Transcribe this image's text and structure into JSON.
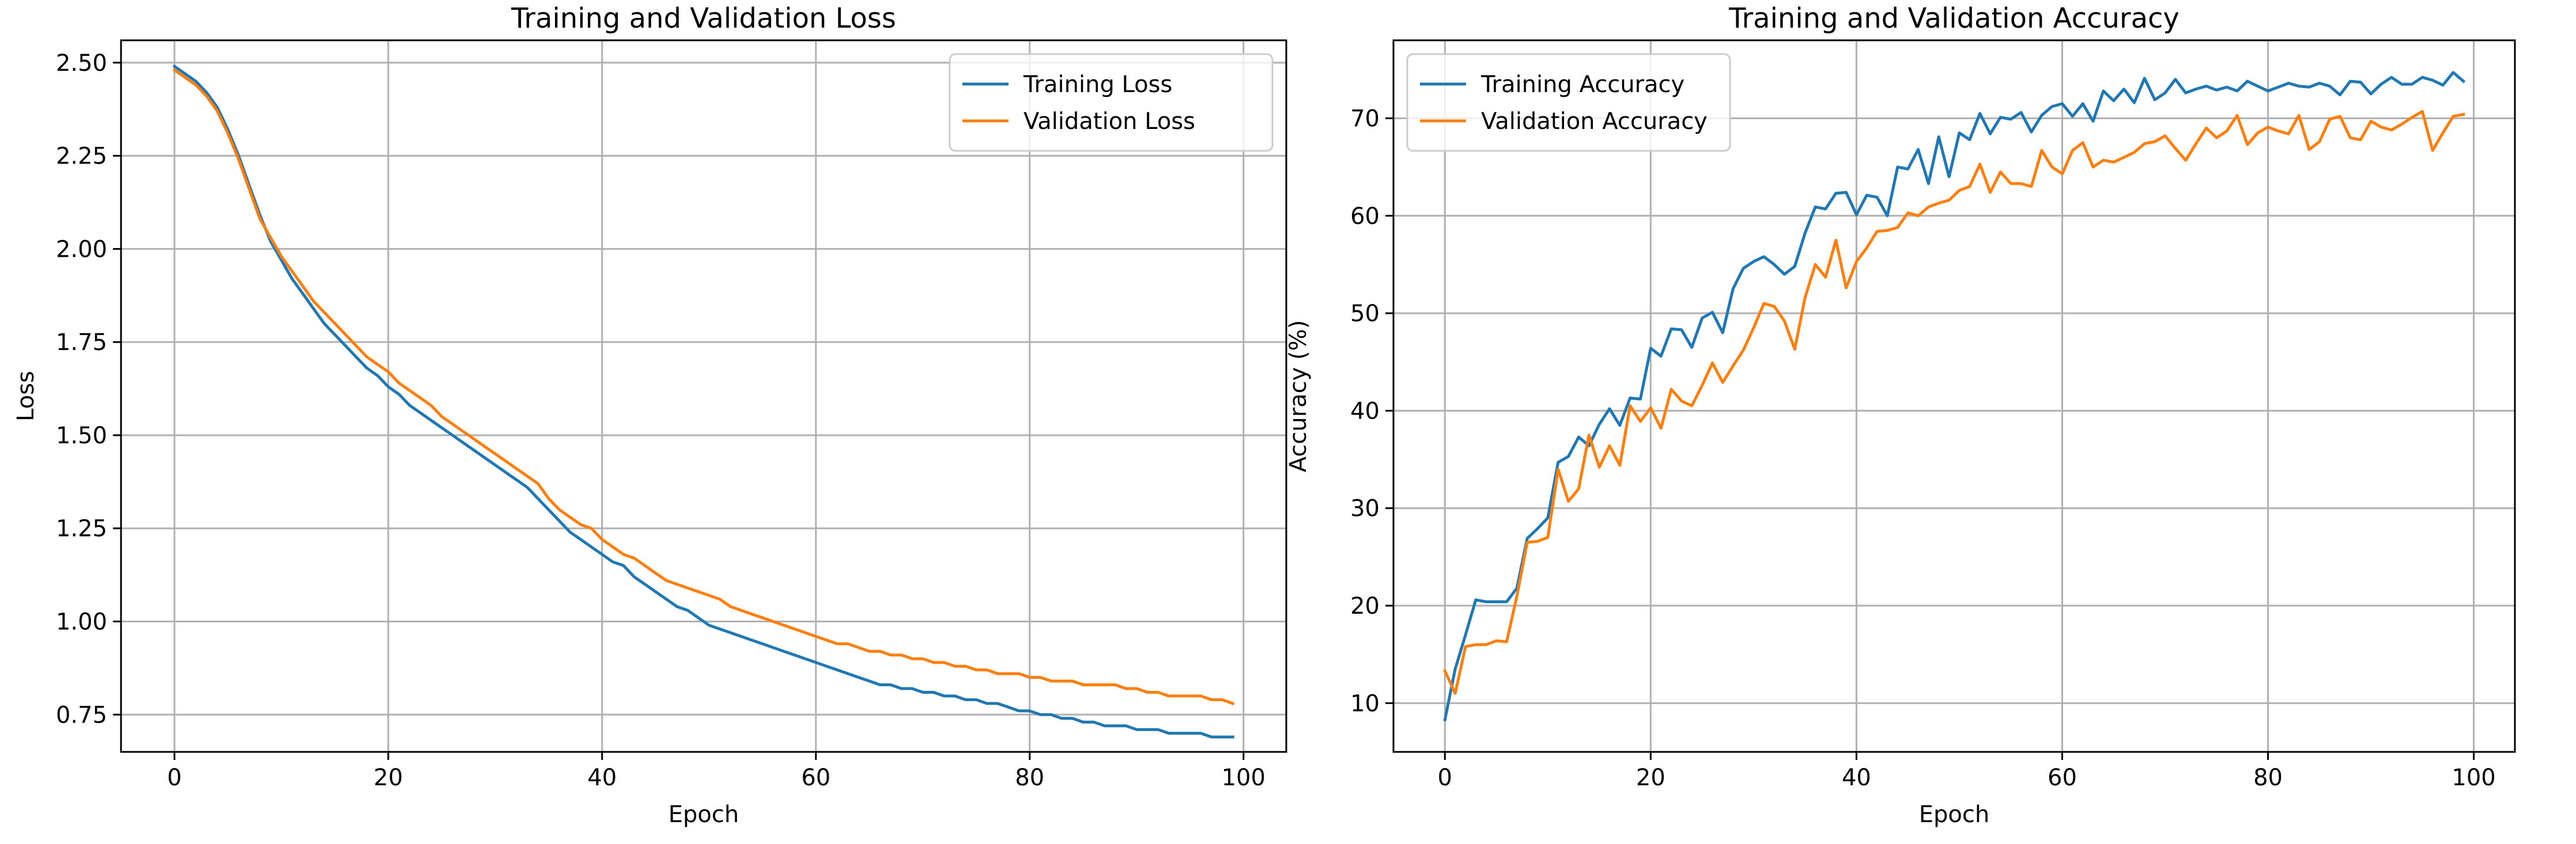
{
  "chart_data": [
    {
      "type": "line",
      "title": "Training and Validation Loss",
      "xlabel": "Epoch",
      "ylabel": "Loss",
      "xlim": [
        -5,
        104
      ],
      "ylim": [
        0.65,
        2.56
      ],
      "xticks": [
        0,
        20,
        40,
        60,
        80,
        100
      ],
      "xtick_labels": [
        "0",
        "20",
        "40",
        "60",
        "80",
        "100"
      ],
      "yticks": [
        0.75,
        1.0,
        1.25,
        1.5,
        1.75,
        2.0,
        2.25,
        2.5
      ],
      "ytick_labels": [
        "0.75",
        "1.00",
        "1.25",
        "1.50",
        "1.75",
        "2.00",
        "2.25",
        "2.50"
      ],
      "grid": true,
      "legend_position": "upper right",
      "series": [
        {
          "name": "Training Loss",
          "color": "#1f77b4",
          "x": [
            0,
            1,
            2,
            3,
            4,
            5,
            6,
            7,
            8,
            9,
            10,
            11,
            12,
            13,
            14,
            15,
            16,
            17,
            18,
            19,
            20,
            21,
            22,
            23,
            24,
            25,
            26,
            27,
            28,
            29,
            30,
            31,
            32,
            33,
            34,
            35,
            36,
            37,
            38,
            39,
            40,
            41,
            42,
            43,
            44,
            45,
            46,
            47,
            48,
            49,
            50,
            51,
            52,
            53,
            54,
            55,
            56,
            57,
            58,
            59,
            60,
            61,
            62,
            63,
            64,
            65,
            66,
            67,
            68,
            69,
            70,
            71,
            72,
            73,
            74,
            75,
            76,
            77,
            78,
            79,
            80,
            81,
            82,
            83,
            84,
            85,
            86,
            87,
            88,
            89,
            90,
            91,
            92,
            93,
            94,
            95,
            96,
            97,
            98,
            99
          ],
          "values": [
            2.49,
            2.47,
            2.45,
            2.42,
            2.38,
            2.32,
            2.25,
            2.17,
            2.09,
            2.02,
            1.97,
            1.92,
            1.88,
            1.84,
            1.8,
            1.77,
            1.74,
            1.71,
            1.68,
            1.66,
            1.63,
            1.61,
            1.58,
            1.56,
            1.54,
            1.52,
            1.5,
            1.48,
            1.46,
            1.44,
            1.42,
            1.4,
            1.38,
            1.36,
            1.33,
            1.3,
            1.27,
            1.24,
            1.22,
            1.2,
            1.18,
            1.16,
            1.15,
            1.12,
            1.1,
            1.08,
            1.06,
            1.04,
            1.03,
            1.01,
            0.99,
            0.98,
            0.97,
            0.96,
            0.95,
            0.94,
            0.93,
            0.92,
            0.91,
            0.9,
            0.89,
            0.88,
            0.87,
            0.86,
            0.85,
            0.84,
            0.83,
            0.83,
            0.82,
            0.82,
            0.81,
            0.81,
            0.8,
            0.8,
            0.79,
            0.79,
            0.78,
            0.78,
            0.77,
            0.76,
            0.76,
            0.75,
            0.75,
            0.74,
            0.74,
            0.73,
            0.73,
            0.72,
            0.72,
            0.72,
            0.71,
            0.71,
            0.71,
            0.7,
            0.7,
            0.7,
            0.7,
            0.69,
            0.69,
            0.69
          ]
        },
        {
          "name": "Validation Loss",
          "color": "#ff7f0e",
          "x": [
            0,
            1,
            2,
            3,
            4,
            5,
            6,
            7,
            8,
            9,
            10,
            11,
            12,
            13,
            14,
            15,
            16,
            17,
            18,
            19,
            20,
            21,
            22,
            23,
            24,
            25,
            26,
            27,
            28,
            29,
            30,
            31,
            32,
            33,
            34,
            35,
            36,
            37,
            38,
            39,
            40,
            41,
            42,
            43,
            44,
            45,
            46,
            47,
            48,
            49,
            50,
            51,
            52,
            53,
            54,
            55,
            56,
            57,
            58,
            59,
            60,
            61,
            62,
            63,
            64,
            65,
            66,
            67,
            68,
            69,
            70,
            71,
            72,
            73,
            74,
            75,
            76,
            77,
            78,
            79,
            80,
            81,
            82,
            83,
            84,
            85,
            86,
            87,
            88,
            89,
            90,
            91,
            92,
            93,
            94,
            95,
            96,
            97,
            98,
            99
          ],
          "values": [
            2.48,
            2.46,
            2.44,
            2.41,
            2.37,
            2.31,
            2.24,
            2.16,
            2.08,
            2.03,
            1.98,
            1.94,
            1.9,
            1.86,
            1.83,
            1.8,
            1.77,
            1.74,
            1.71,
            1.69,
            1.67,
            1.64,
            1.62,
            1.6,
            1.58,
            1.55,
            1.53,
            1.51,
            1.49,
            1.47,
            1.45,
            1.43,
            1.41,
            1.39,
            1.37,
            1.33,
            1.3,
            1.28,
            1.26,
            1.25,
            1.22,
            1.2,
            1.18,
            1.17,
            1.15,
            1.13,
            1.11,
            1.1,
            1.09,
            1.08,
            1.07,
            1.06,
            1.04,
            1.03,
            1.02,
            1.01,
            1.0,
            0.99,
            0.98,
            0.97,
            0.96,
            0.95,
            0.94,
            0.94,
            0.93,
            0.92,
            0.92,
            0.91,
            0.91,
            0.9,
            0.9,
            0.89,
            0.89,
            0.88,
            0.88,
            0.87,
            0.87,
            0.86,
            0.86,
            0.86,
            0.85,
            0.85,
            0.84,
            0.84,
            0.84,
            0.83,
            0.83,
            0.83,
            0.83,
            0.82,
            0.82,
            0.81,
            0.81,
            0.8,
            0.8,
            0.8,
            0.8,
            0.79,
            0.79,
            0.78
          ]
        }
      ]
    },
    {
      "type": "line",
      "title": "Training and Validation Accuracy",
      "xlabel": "Epoch",
      "ylabel": "Accuracy (%)",
      "xlim": [
        -5,
        104
      ],
      "ylim": [
        5,
        78
      ],
      "xticks": [
        0,
        20,
        40,
        60,
        80,
        100
      ],
      "xtick_labels": [
        "0",
        "20",
        "40",
        "60",
        "80",
        "100"
      ],
      "yticks": [
        10,
        20,
        30,
        40,
        50,
        60,
        70
      ],
      "ytick_labels": [
        "10",
        "20",
        "30",
        "40",
        "50",
        "60",
        "70"
      ],
      "grid": true,
      "legend_position": "upper left",
      "series": [
        {
          "name": "Training Accuracy",
          "color": "#1f77b4",
          "x": [
            0,
            1,
            2,
            3,
            4,
            5,
            6,
            7,
            8,
            9,
            10,
            11,
            12,
            13,
            14,
            15,
            16,
            17,
            18,
            19,
            20,
            21,
            22,
            23,
            24,
            25,
            26,
            27,
            28,
            29,
            30,
            31,
            32,
            33,
            34,
            35,
            36,
            37,
            38,
            39,
            40,
            41,
            42,
            43,
            44,
            45,
            46,
            47,
            48,
            49,
            50,
            51,
            52,
            53,
            54,
            55,
            56,
            57,
            58,
            59,
            60,
            61,
            62,
            63,
            64,
            65,
            66,
            67,
            68,
            69,
            70,
            71,
            72,
            73,
            74,
            75,
            76,
            77,
            78,
            79,
            80,
            81,
            82,
            83,
            84,
            85,
            86,
            87,
            88,
            89,
            90,
            91,
            92,
            93,
            94,
            95,
            96,
            97,
            98,
            99
          ],
          "values": [
            8.3,
            13.5,
            17.0,
            20.6,
            20.4,
            20.4,
            20.4,
            21.8,
            26.9,
            27.9,
            29.0,
            34.7,
            35.3,
            37.3,
            36.4,
            38.6,
            40.2,
            38.5,
            41.3,
            41.2,
            46.4,
            45.6,
            48.4,
            48.3,
            46.5,
            49.5,
            50.1,
            48.0,
            52.5,
            54.6,
            55.3,
            55.8,
            55.0,
            54.0,
            54.8,
            58.2,
            60.9,
            60.7,
            62.3,
            62.4,
            60.1,
            62.1,
            61.9,
            60.0,
            65.0,
            64.8,
            66.8,
            63.3,
            68.1,
            64.0,
            68.5,
            67.8,
            70.5,
            68.4,
            70.1,
            69.9,
            70.6,
            68.6,
            70.3,
            71.2,
            71.5,
            70.2,
            71.5,
            69.7,
            72.8,
            71.8,
            73.0,
            71.6,
            74.1,
            71.9,
            72.6,
            74.0,
            72.6,
            73.0,
            73.3,
            72.9,
            73.2,
            72.8,
            73.8,
            73.3,
            72.8,
            73.2,
            73.6,
            73.3,
            73.2,
            73.6,
            73.3,
            72.4,
            73.8,
            73.7,
            72.5,
            73.5,
            74.2,
            73.5,
            73.5,
            74.2,
            73.9,
            73.4,
            74.7,
            73.8
          ]
        },
        {
          "name": "Validation Accuracy",
          "color": "#ff7f0e",
          "x": [
            0,
            1,
            2,
            3,
            4,
            5,
            6,
            7,
            8,
            9,
            10,
            11,
            12,
            13,
            14,
            15,
            16,
            17,
            18,
            19,
            20,
            21,
            22,
            23,
            24,
            25,
            26,
            27,
            28,
            29,
            30,
            31,
            32,
            33,
            34,
            35,
            36,
            37,
            38,
            39,
            40,
            41,
            42,
            43,
            44,
            45,
            46,
            47,
            48,
            49,
            50,
            51,
            52,
            53,
            54,
            55,
            56,
            57,
            58,
            59,
            60,
            61,
            62,
            63,
            64,
            65,
            66,
            67,
            68,
            69,
            70,
            71,
            72,
            73,
            74,
            75,
            76,
            77,
            78,
            79,
            80,
            81,
            82,
            83,
            84,
            85,
            86,
            87,
            88,
            89,
            90,
            91,
            92,
            93,
            94,
            95,
            96,
            97,
            98,
            99
          ],
          "values": [
            13.3,
            11.0,
            15.8,
            16.0,
            16.0,
            16.4,
            16.3,
            21.0,
            26.5,
            26.6,
            27.0,
            34.0,
            30.7,
            32.0,
            37.5,
            34.2,
            36.4,
            34.4,
            40.5,
            38.9,
            40.3,
            38.2,
            42.2,
            41.0,
            40.5,
            42.6,
            44.9,
            42.9,
            44.6,
            46.2,
            48.5,
            51.0,
            50.7,
            49.2,
            46.3,
            51.6,
            55.0,
            53.7,
            57.5,
            52.6,
            55.3,
            56.7,
            58.4,
            58.5,
            58.8,
            60.3,
            60.0,
            60.9,
            61.3,
            61.6,
            62.6,
            63.0,
            65.3,
            62.4,
            64.5,
            63.3,
            63.3,
            63.0,
            66.7,
            65.0,
            64.3,
            66.7,
            67.5,
            65.0,
            65.7,
            65.5,
            66.0,
            66.5,
            67.4,
            67.6,
            68.2,
            66.9,
            65.7,
            67.4,
            69.0,
            68.0,
            68.7,
            70.3,
            67.3,
            68.5,
            69.1,
            68.7,
            68.4,
            70.3,
            66.8,
            67.6,
            69.9,
            70.2,
            68.0,
            67.8,
            69.7,
            69.1,
            68.8,
            69.4,
            70.1,
            70.7,
            66.7,
            68.5,
            70.2,
            70.4
          ]
        }
      ]
    }
  ]
}
